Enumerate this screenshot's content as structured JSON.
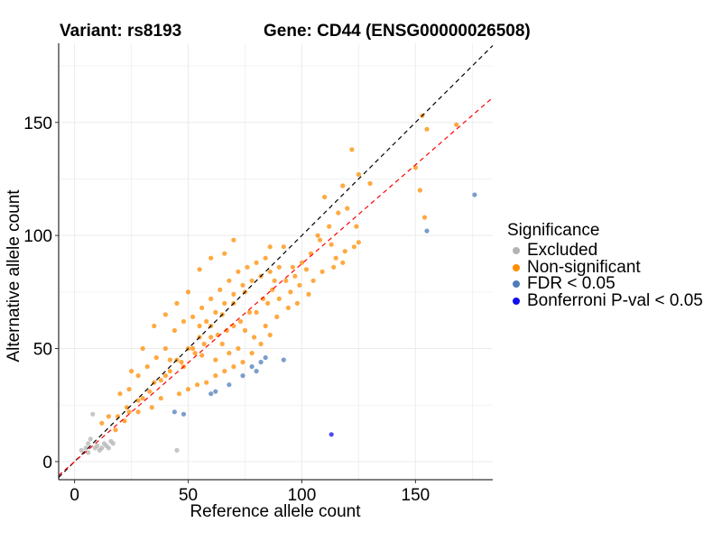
{
  "header": {
    "variant_title": "Variant: rs8193",
    "gene_title": "Gene: CD44 (ENSG00000026508)"
  },
  "legend": {
    "title": "Significance",
    "items": [
      {
        "label": "Excluded",
        "color": "#b3b3b3"
      },
      {
        "label": "Non-significant",
        "color": "#ff8c00"
      },
      {
        "label": "FDR < 0.05",
        "color": "#4f7db8"
      },
      {
        "label": "Bonferroni P-val < 0.05",
        "color": "#1010ee"
      }
    ]
  },
  "chart_data": {
    "type": "scatter",
    "xlabel": "Reference allele count",
    "ylabel": "Alternative allele count",
    "xlim": [
      -7,
      184
    ],
    "ylim": [
      -8,
      185
    ],
    "xticks": [
      0,
      50,
      100,
      150
    ],
    "yticks": [
      0,
      50,
      100,
      150
    ],
    "grid": true,
    "legend_position": "right",
    "reference_lines": [
      {
        "style": "dashed",
        "color": "#000000",
        "slope": 1.0,
        "intercept": 0
      },
      {
        "style": "dashed",
        "color": "#ff0000",
        "slope": 0.875,
        "intercept": 0
      }
    ],
    "series": [
      {
        "name": "Excluded",
        "color": "#b3b3b3",
        "points": [
          [
            3,
            5
          ],
          [
            5,
            6
          ],
          [
            6,
            8
          ],
          [
            7,
            10
          ],
          [
            8,
            21
          ],
          [
            9,
            6
          ],
          [
            10,
            7
          ],
          [
            11,
            5
          ],
          [
            12,
            6
          ],
          [
            13,
            8
          ],
          [
            14,
            7
          ],
          [
            15,
            6
          ],
          [
            16,
            9
          ],
          [
            17,
            8
          ],
          [
            45,
            5
          ],
          [
            6,
            4
          ]
        ]
      },
      {
        "name": "Non-significant",
        "color": "#ff8c00",
        "points": [
          [
            125,
            127
          ],
          [
            153,
            153
          ],
          [
            155,
            147
          ],
          [
            168,
            149
          ],
          [
            122,
            138
          ],
          [
            152,
            120
          ],
          [
            154,
            108
          ],
          [
            130,
            123
          ],
          [
            118,
            122
          ],
          [
            110,
            117
          ],
          [
            124,
            104
          ],
          [
            125,
            97
          ],
          [
            119,
            93
          ],
          [
            115,
            90
          ],
          [
            105,
            80
          ],
          [
            99,
            78
          ],
          [
            95,
            75
          ],
          [
            88,
            80
          ],
          [
            86,
            95
          ],
          [
            70,
            98
          ],
          [
            66,
            92
          ],
          [
            60,
            90
          ],
          [
            55,
            85
          ],
          [
            50,
            75
          ],
          [
            45,
            70
          ],
          [
            40,
            65
          ],
          [
            35,
            60
          ],
          [
            30,
            50
          ],
          [
            25,
            40
          ],
          [
            20,
            30
          ],
          [
            15,
            20
          ],
          [
            12,
            17
          ],
          [
            18,
            14
          ],
          [
            24,
            22
          ],
          [
            30,
            28
          ],
          [
            35,
            35
          ],
          [
            40,
            38
          ],
          [
            42,
            45
          ],
          [
            48,
            42
          ],
          [
            52,
            50
          ],
          [
            56,
            47
          ],
          [
            60,
            55
          ],
          [
            65,
            52
          ],
          [
            70,
            60
          ],
          [
            75,
            58
          ],
          [
            80,
            66
          ],
          [
            85,
            70
          ],
          [
            90,
            72
          ],
          [
            96,
            86
          ],
          [
            100,
            88
          ],
          [
            104,
            92
          ],
          [
            108,
            98
          ],
          [
            112,
            104
          ],
          [
            116,
            110
          ],
          [
            120,
            112
          ],
          [
            58,
            35
          ],
          [
            62,
            38
          ],
          [
            66,
            40
          ],
          [
            70,
            42
          ],
          [
            74,
            44
          ],
          [
            78,
            48
          ],
          [
            82,
            52
          ],
          [
            86,
            56
          ],
          [
            46,
            30
          ],
          [
            50,
            32
          ],
          [
            54,
            34
          ],
          [
            38,
            28
          ],
          [
            34,
            24
          ],
          [
            28,
            22
          ],
          [
            22,
            18
          ],
          [
            44,
            58
          ],
          [
            48,
            62
          ],
          [
            52,
            64
          ],
          [
            56,
            68
          ],
          [
            60,
            72
          ],
          [
            64,
            76
          ],
          [
            68,
            80
          ],
          [
            72,
            84
          ],
          [
            76,
            86
          ],
          [
            80,
            88
          ],
          [
            84,
            90
          ],
          [
            40,
            50
          ],
          [
            36,
            46
          ],
          [
            32,
            42
          ],
          [
            28,
            38
          ],
          [
            24,
            32
          ],
          [
            55,
            60
          ],
          [
            58,
            62
          ],
          [
            62,
            66
          ],
          [
            66,
            70
          ],
          [
            70,
            74
          ],
          [
            74,
            78
          ],
          [
            78,
            80
          ],
          [
            82,
            82
          ],
          [
            86,
            84
          ],
          [
            90,
            86
          ],
          [
            45,
            45
          ],
          [
            50,
            50
          ],
          [
            55,
            55
          ],
          [
            60,
            60
          ],
          [
            65,
            65
          ],
          [
            70,
            70
          ],
          [
            75,
            75
          ],
          [
            42,
            40
          ],
          [
            47,
            44
          ],
          [
            53,
            48
          ],
          [
            57,
            52
          ],
          [
            63,
            56
          ],
          [
            67,
            58
          ],
          [
            73,
            62
          ],
          [
            77,
            66
          ],
          [
            83,
            72
          ],
          [
            87,
            76
          ],
          [
            93,
            80
          ],
          [
            97,
            82
          ],
          [
            102,
            85
          ],
          [
            38,
            36
          ],
          [
            33,
            31
          ],
          [
            28,
            27
          ],
          [
            23,
            24
          ],
          [
            19,
            20
          ],
          [
            107,
            100
          ],
          [
            113,
            96
          ],
          [
            92,
            95
          ],
          [
            62,
            45
          ],
          [
            68,
            48
          ],
          [
            72,
            50
          ],
          [
            79,
            55
          ],
          [
            84,
            60
          ],
          [
            89,
            64
          ],
          [
            94,
            68
          ],
          [
            98,
            70
          ],
          [
            103,
            74
          ],
          [
            109,
            84
          ],
          [
            114,
            86
          ],
          [
            118,
            88
          ],
          [
            123,
            95
          ],
          [
            150,
            130
          ]
        ]
      },
      {
        "name": "FDR < 0.05",
        "color": "#4f7db8",
        "points": [
          [
            176,
            118
          ],
          [
            155,
            102
          ],
          [
            92,
            45
          ],
          [
            80,
            40
          ],
          [
            84,
            46
          ],
          [
            82,
            44
          ],
          [
            78,
            42
          ],
          [
            74,
            38
          ],
          [
            68,
            34
          ],
          [
            60,
            30
          ],
          [
            48,
            21
          ],
          [
            62,
            31
          ],
          [
            44,
            22
          ]
        ]
      },
      {
        "name": "Bonferroni P-val < 0.05",
        "color": "#1010ee",
        "points": [
          [
            113,
            12
          ]
        ]
      }
    ]
  }
}
